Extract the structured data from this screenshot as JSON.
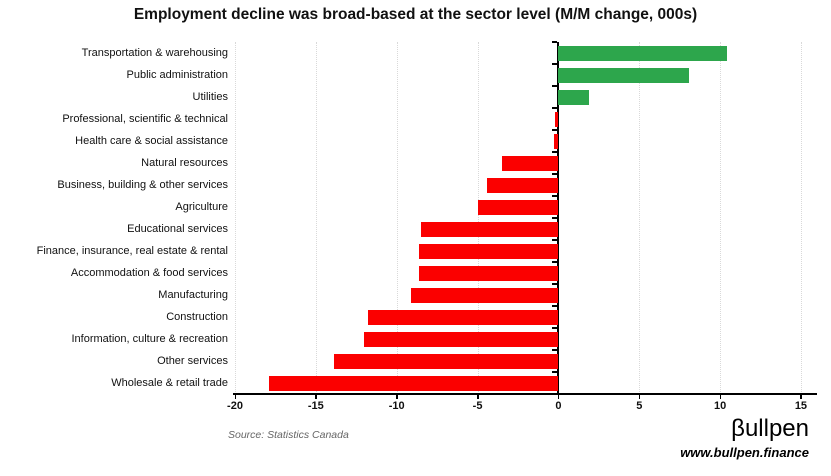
{
  "title": "Employment decline was broad-based at the sector level (M/M change, 000s)",
  "source_note": "Source: Statistics Canada",
  "brand": {
    "logo_text": "βullpen",
    "website": "www.bullpen.finance"
  },
  "colors": {
    "positive": "#2da64c",
    "negative": "#fb0000",
    "gridline": "#d9d9d9",
    "axis": "#000000",
    "background": "#ffffff"
  },
  "chart_data": {
    "type": "bar",
    "orientation": "horizontal",
    "title": "Employment decline was broad-based at the sector level (M/M change, 000s)",
    "xlabel": "",
    "ylabel": "",
    "xlim": [
      -20,
      15
    ],
    "xticks": [
      -20,
      -15,
      -10,
      -5,
      0,
      5,
      10,
      15
    ],
    "grid": "vertical-dotted",
    "legend": "none",
    "categories": [
      "Transportation & warehousing",
      "Public administration",
      "Utilities",
      "Professional, scientific & technical",
      "Health care & social assistance",
      "Natural resources",
      "Business, building & other services",
      "Agriculture",
      "Educational services",
      "Finance, insurance, real estate & rental",
      "Accommodation & food services",
      "Manufacturing",
      "Construction",
      "Information, culture & recreation",
      "Other services",
      "Wholesale & retail trade"
    ],
    "values": [
      10.4,
      8.1,
      1.9,
      -0.2,
      -0.3,
      -3.5,
      -4.4,
      -5.0,
      -8.5,
      -8.6,
      -8.6,
      -9.1,
      -11.8,
      -12.0,
      -13.9,
      -17.9
    ]
  }
}
